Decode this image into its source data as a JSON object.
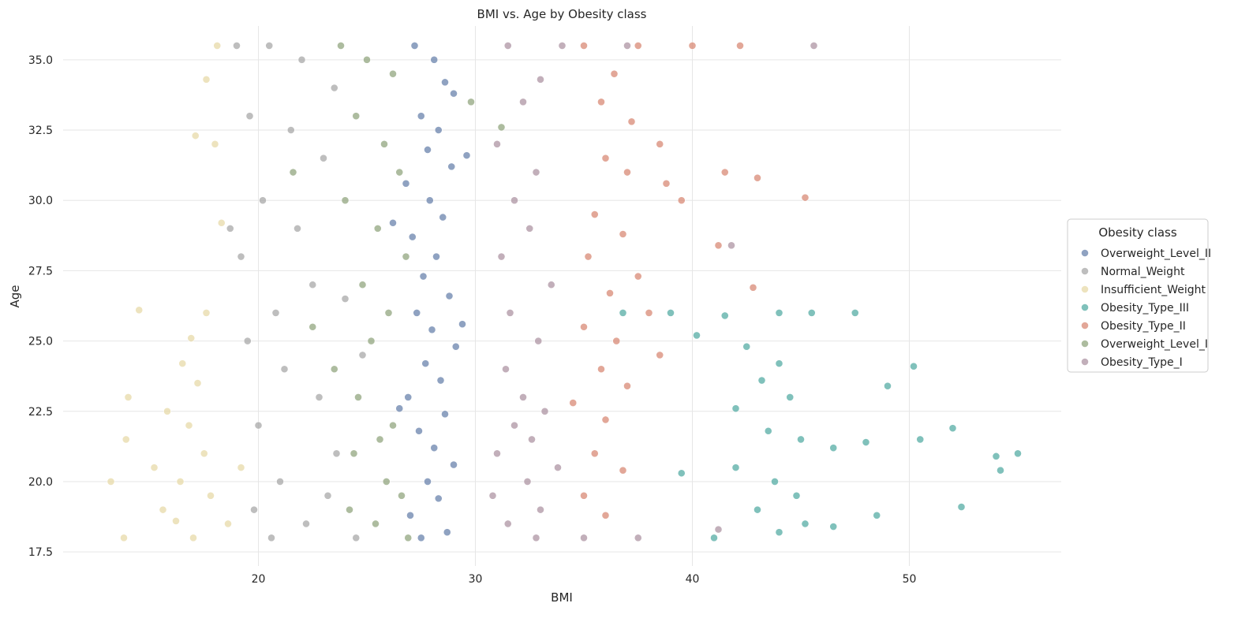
{
  "chart_data": {
    "type": "scatter",
    "title": "BMI vs. Age by Obesity class",
    "xlabel": "BMI",
    "ylabel": "Age",
    "xlim": [
      11.0,
      57.0
    ],
    "ylim": [
      17.0,
      36.2
    ],
    "xticks": [
      20,
      30,
      40,
      50
    ],
    "xtick_labels": [
      "20",
      "30",
      "40",
      "50"
    ],
    "yticks": [
      17.5,
      20.0,
      22.5,
      25.0,
      27.5,
      30.0,
      32.5,
      35.0
    ],
    "ytick_labels": [
      "17.5",
      "20.0",
      "22.5",
      "25.0",
      "27.5",
      "30.0",
      "32.5",
      "35.0"
    ],
    "grid": true,
    "legend": {
      "title": "Obesity class",
      "placement": "right"
    },
    "series": [
      {
        "name": "Overweight_Level_II",
        "color": "#5f7aa6",
        "points": [
          [
            27.2,
            35.5
          ],
          [
            28.1,
            35.0
          ],
          [
            28.6,
            34.2
          ],
          [
            29.0,
            33.8
          ],
          [
            27.5,
            33.0
          ],
          [
            28.3,
            32.5
          ],
          [
            27.8,
            31.8
          ],
          [
            28.9,
            31.2
          ],
          [
            26.8,
            30.6
          ],
          [
            27.9,
            30.0
          ],
          [
            28.5,
            29.4
          ],
          [
            27.1,
            28.7
          ],
          [
            28.2,
            28.0
          ],
          [
            27.6,
            27.3
          ],
          [
            28.8,
            26.6
          ],
          [
            27.3,
            26.0
          ],
          [
            28.0,
            25.4
          ],
          [
            29.1,
            24.8
          ],
          [
            27.7,
            24.2
          ],
          [
            28.4,
            23.6
          ],
          [
            26.9,
            23.0
          ],
          [
            28.6,
            22.4
          ],
          [
            27.4,
            21.8
          ],
          [
            28.1,
            21.2
          ],
          [
            29.0,
            20.6
          ],
          [
            27.8,
            20.0
          ],
          [
            28.3,
            19.4
          ],
          [
            27.0,
            18.8
          ],
          [
            28.7,
            18.2
          ],
          [
            27.5,
            18.0
          ],
          [
            26.5,
            22.6
          ],
          [
            29.4,
            25.6
          ],
          [
            26.2,
            29.2
          ],
          [
            29.6,
            31.6
          ]
        ]
      },
      {
        "name": "Normal_Weight",
        "color": "#a3a3a3",
        "points": [
          [
            19.0,
            35.5
          ],
          [
            20.5,
            35.5
          ],
          [
            22.0,
            35.0
          ],
          [
            23.5,
            34.0
          ],
          [
            19.6,
            33.0
          ],
          [
            21.5,
            32.5
          ],
          [
            23.0,
            31.5
          ],
          [
            20.2,
            30.0
          ],
          [
            21.8,
            29.0
          ],
          [
            19.2,
            28.0
          ],
          [
            22.5,
            27.0
          ],
          [
            24.0,
            26.5
          ],
          [
            20.8,
            26.0
          ],
          [
            19.5,
            25.0
          ],
          [
            21.2,
            24.0
          ],
          [
            22.8,
            23.0
          ],
          [
            20.0,
            22.0
          ],
          [
            23.6,
            21.0
          ],
          [
            21.0,
            20.0
          ],
          [
            19.8,
            19.0
          ],
          [
            22.2,
            18.5
          ],
          [
            24.5,
            18.0
          ],
          [
            20.6,
            18.0
          ],
          [
            23.2,
            19.5
          ],
          [
            18.7,
            29.0
          ],
          [
            24.8,
            24.5
          ]
        ]
      },
      {
        "name": "Insufficient_Weight",
        "color": "#e6d7a3",
        "points": [
          [
            18.1,
            35.5
          ],
          [
            17.6,
            34.3
          ],
          [
            17.1,
            32.3
          ],
          [
            18.0,
            32.0
          ],
          [
            18.3,
            29.2
          ],
          [
            17.6,
            26.0
          ],
          [
            14.5,
            26.1
          ],
          [
            16.9,
            25.1
          ],
          [
            16.5,
            24.2
          ],
          [
            17.2,
            23.5
          ],
          [
            14.0,
            23.0
          ],
          [
            15.8,
            22.5
          ],
          [
            16.8,
            22.0
          ],
          [
            13.9,
            21.5
          ],
          [
            17.5,
            21.0
          ],
          [
            15.2,
            20.5
          ],
          [
            16.4,
            20.0
          ],
          [
            13.2,
            20.0
          ],
          [
            17.8,
            19.5
          ],
          [
            15.6,
            19.0
          ],
          [
            16.2,
            18.6
          ],
          [
            13.8,
            18.0
          ],
          [
            17.0,
            18.0
          ],
          [
            18.6,
            18.5
          ],
          [
            19.2,
            20.5
          ]
        ]
      },
      {
        "name": "Obesity_Type_III",
        "color": "#4aa79e",
        "points": [
          [
            36.8,
            26.0
          ],
          [
            39.0,
            26.0
          ],
          [
            41.5,
            25.9
          ],
          [
            44.0,
            26.0
          ],
          [
            45.5,
            26.0
          ],
          [
            47.5,
            26.0
          ],
          [
            40.2,
            25.2
          ],
          [
            42.5,
            24.8
          ],
          [
            44.0,
            24.2
          ],
          [
            43.2,
            23.6
          ],
          [
            44.5,
            23.0
          ],
          [
            42.0,
            22.6
          ],
          [
            43.5,
            21.8
          ],
          [
            45.0,
            21.5
          ],
          [
            46.5,
            21.2
          ],
          [
            48.0,
            21.4
          ],
          [
            50.5,
            21.5
          ],
          [
            52.0,
            21.9
          ],
          [
            54.0,
            20.9
          ],
          [
            55.0,
            21.0
          ],
          [
            54.2,
            20.4
          ],
          [
            42.0,
            20.5
          ],
          [
            43.8,
            20.0
          ],
          [
            44.8,
            19.5
          ],
          [
            43.0,
            19.0
          ],
          [
            45.2,
            18.5
          ],
          [
            44.0,
            18.2
          ],
          [
            46.5,
            18.4
          ],
          [
            48.5,
            18.8
          ],
          [
            50.2,
            24.1
          ],
          [
            49.0,
            23.4
          ],
          [
            41.0,
            18.0
          ],
          [
            52.4,
            19.1
          ],
          [
            39.5,
            20.3
          ]
        ]
      },
      {
        "name": "Obesity_Type_II",
        "color": "#d6816c",
        "points": [
          [
            35.0,
            35.5
          ],
          [
            37.5,
            35.5
          ],
          [
            40.0,
            35.5
          ],
          [
            42.2,
            35.5
          ],
          [
            36.4,
            34.5
          ],
          [
            35.8,
            33.5
          ],
          [
            37.2,
            32.8
          ],
          [
            38.5,
            32.0
          ],
          [
            36.0,
            31.5
          ],
          [
            37.0,
            31.0
          ],
          [
            38.8,
            30.6
          ],
          [
            39.5,
            30.0
          ],
          [
            35.5,
            29.5
          ],
          [
            36.8,
            28.8
          ],
          [
            35.2,
            28.0
          ],
          [
            37.5,
            27.3
          ],
          [
            36.2,
            26.7
          ],
          [
            38.0,
            26.0
          ],
          [
            35.0,
            25.5
          ],
          [
            36.5,
            25.0
          ],
          [
            38.5,
            24.5
          ],
          [
            35.8,
            24.0
          ],
          [
            37.0,
            23.4
          ],
          [
            34.5,
            22.8
          ],
          [
            36.0,
            22.2
          ],
          [
            35.5,
            21.0
          ],
          [
            36.8,
            20.4
          ],
          [
            35.0,
            19.5
          ],
          [
            36.0,
            18.8
          ],
          [
            41.5,
            31.0
          ],
          [
            43.0,
            30.8
          ],
          [
            45.2,
            30.1
          ],
          [
            41.2,
            28.4
          ],
          [
            42.8,
            26.9
          ]
        ]
      },
      {
        "name": "Overweight_Level_I",
        "color": "#8aa076",
        "points": [
          [
            23.8,
            35.5
          ],
          [
            25.0,
            35.0
          ],
          [
            26.2,
            34.5
          ],
          [
            24.5,
            33.0
          ],
          [
            25.8,
            32.0
          ],
          [
            26.5,
            31.0
          ],
          [
            24.0,
            30.0
          ],
          [
            25.5,
            29.0
          ],
          [
            26.8,
            28.0
          ],
          [
            24.8,
            27.0
          ],
          [
            26.0,
            26.0
          ],
          [
            25.2,
            25.0
          ],
          [
            23.5,
            24.0
          ],
          [
            24.6,
            23.0
          ],
          [
            26.2,
            22.0
          ],
          [
            25.6,
            21.5
          ],
          [
            24.4,
            21.0
          ],
          [
            25.9,
            20.0
          ],
          [
            26.6,
            19.5
          ],
          [
            24.2,
            19.0
          ],
          [
            25.4,
            18.5
          ],
          [
            26.9,
            18.0
          ],
          [
            29.8,
            33.5
          ],
          [
            31.2,
            32.6
          ],
          [
            22.5,
            25.5
          ],
          [
            21.6,
            31.0
          ]
        ]
      },
      {
        "name": "Obesity_Type_I",
        "color": "#a88d9d",
        "points": [
          [
            31.5,
            35.5
          ],
          [
            34.0,
            35.5
          ],
          [
            37.0,
            35.5
          ],
          [
            45.6,
            35.5
          ],
          [
            33.0,
            34.3
          ],
          [
            32.2,
            33.5
          ],
          [
            31.0,
            32.0
          ],
          [
            32.8,
            31.0
          ],
          [
            31.8,
            30.0
          ],
          [
            32.5,
            29.0
          ],
          [
            31.2,
            28.0
          ],
          [
            33.5,
            27.0
          ],
          [
            31.6,
            26.0
          ],
          [
            32.9,
            25.0
          ],
          [
            31.4,
            24.0
          ],
          [
            32.2,
            23.0
          ],
          [
            33.2,
            22.5
          ],
          [
            31.8,
            22.0
          ],
          [
            32.6,
            21.5
          ],
          [
            31.0,
            21.0
          ],
          [
            33.8,
            20.5
          ],
          [
            32.4,
            20.0
          ],
          [
            30.8,
            19.5
          ],
          [
            33.0,
            19.0
          ],
          [
            31.5,
            18.5
          ],
          [
            32.8,
            18.0
          ],
          [
            35.0,
            18.0
          ],
          [
            37.5,
            18.0
          ],
          [
            41.2,
            18.3
          ],
          [
            41.8,
            28.4
          ]
        ]
      }
    ]
  }
}
